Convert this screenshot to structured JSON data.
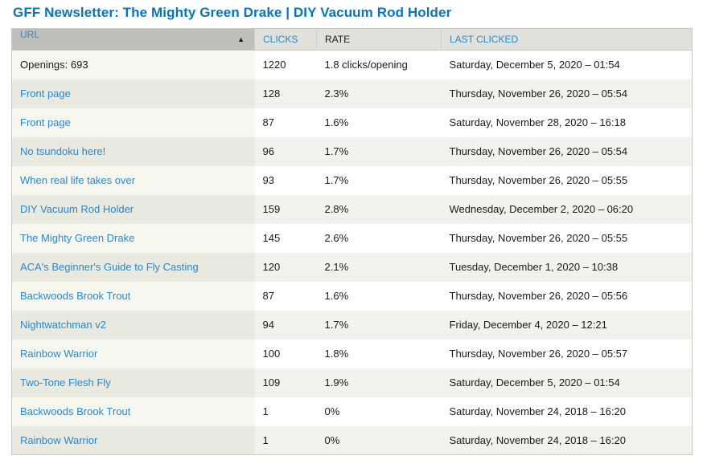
{
  "page": {
    "title": "GFF Newsletter: The Mighty Green Drake | DIY Vacuum Rod Holder"
  },
  "colors": {
    "title_blue": "#0c73b7",
    "link_blue": "#2e86c4",
    "header_bg": "#e0e1dc",
    "header_active_bg": "#bebfba",
    "row_even_bg": "#f1f1ed",
    "active_col_odd_bg": "#f7f7ef",
    "active_col_even_bg": "#e9e9df"
  },
  "table": {
    "sort_icon": "▲",
    "columns": [
      {
        "label": "URL",
        "sortable": true,
        "active": true,
        "sort": "asc"
      },
      {
        "label": "CLICKS",
        "sortable": true,
        "active": false
      },
      {
        "label": "RATE",
        "sortable": false,
        "active": false
      },
      {
        "label": "LAST CLICKED",
        "sortable": true,
        "active": false
      }
    ],
    "rows": [
      {
        "url": "Openings: 693",
        "is_link": false,
        "clicks": "1220",
        "rate": "1.8 clicks/opening",
        "last_clicked": "Saturday, December 5, 2020 – 01:54"
      },
      {
        "url": "Front page",
        "is_link": true,
        "clicks": "128",
        "rate": "2.3%",
        "last_clicked": "Thursday, November 26, 2020 – 05:54"
      },
      {
        "url": "Front page",
        "is_link": true,
        "clicks": "87",
        "rate": "1.6%",
        "last_clicked": "Saturday, November 28, 2020 – 16:18"
      },
      {
        "url": "No tsundoku here!",
        "is_link": true,
        "clicks": "96",
        "rate": "1.7%",
        "last_clicked": "Thursday, November 26, 2020 – 05:54"
      },
      {
        "url": "When real life takes over",
        "is_link": true,
        "clicks": "93",
        "rate": "1.7%",
        "last_clicked": "Thursday, November 26, 2020 – 05:55"
      },
      {
        "url": "DIY Vacuum Rod Holder",
        "is_link": true,
        "clicks": "159",
        "rate": "2.8%",
        "last_clicked": "Wednesday, December 2, 2020 – 06:20"
      },
      {
        "url": "The Mighty Green Drake",
        "is_link": true,
        "clicks": "145",
        "rate": "2.6%",
        "last_clicked": "Thursday, November 26, 2020 – 05:55"
      },
      {
        "url": "ACA's Beginner's Guide to Fly Casting",
        "is_link": true,
        "clicks": "120",
        "rate": "2.1%",
        "last_clicked": "Tuesday, December 1, 2020 – 10:38"
      },
      {
        "url": "Backwoods Brook Trout",
        "is_link": true,
        "clicks": "87",
        "rate": "1.6%",
        "last_clicked": "Thursday, November 26, 2020 – 05:56"
      },
      {
        "url": "Nightwatchman v2",
        "is_link": true,
        "clicks": "94",
        "rate": "1.7%",
        "last_clicked": "Friday, December 4, 2020 – 12:21"
      },
      {
        "url": "Rainbow Warrior",
        "is_link": true,
        "clicks": "100",
        "rate": "1.8%",
        "last_clicked": "Thursday, November 26, 2020 – 05:57"
      },
      {
        "url": "Two-Tone Flesh Fly",
        "is_link": true,
        "clicks": "109",
        "rate": "1.9%",
        "last_clicked": "Saturday, December 5, 2020 – 01:54"
      },
      {
        "url": "Backwoods Brook Trout",
        "is_link": true,
        "clicks": "1",
        "rate": "0%",
        "last_clicked": "Saturday, November 24, 2018 – 16:20"
      },
      {
        "url": "Rainbow Warrior",
        "is_link": true,
        "clicks": "1",
        "rate": "0%",
        "last_clicked": "Saturday, November 24, 2018 – 16:20"
      }
    ]
  }
}
